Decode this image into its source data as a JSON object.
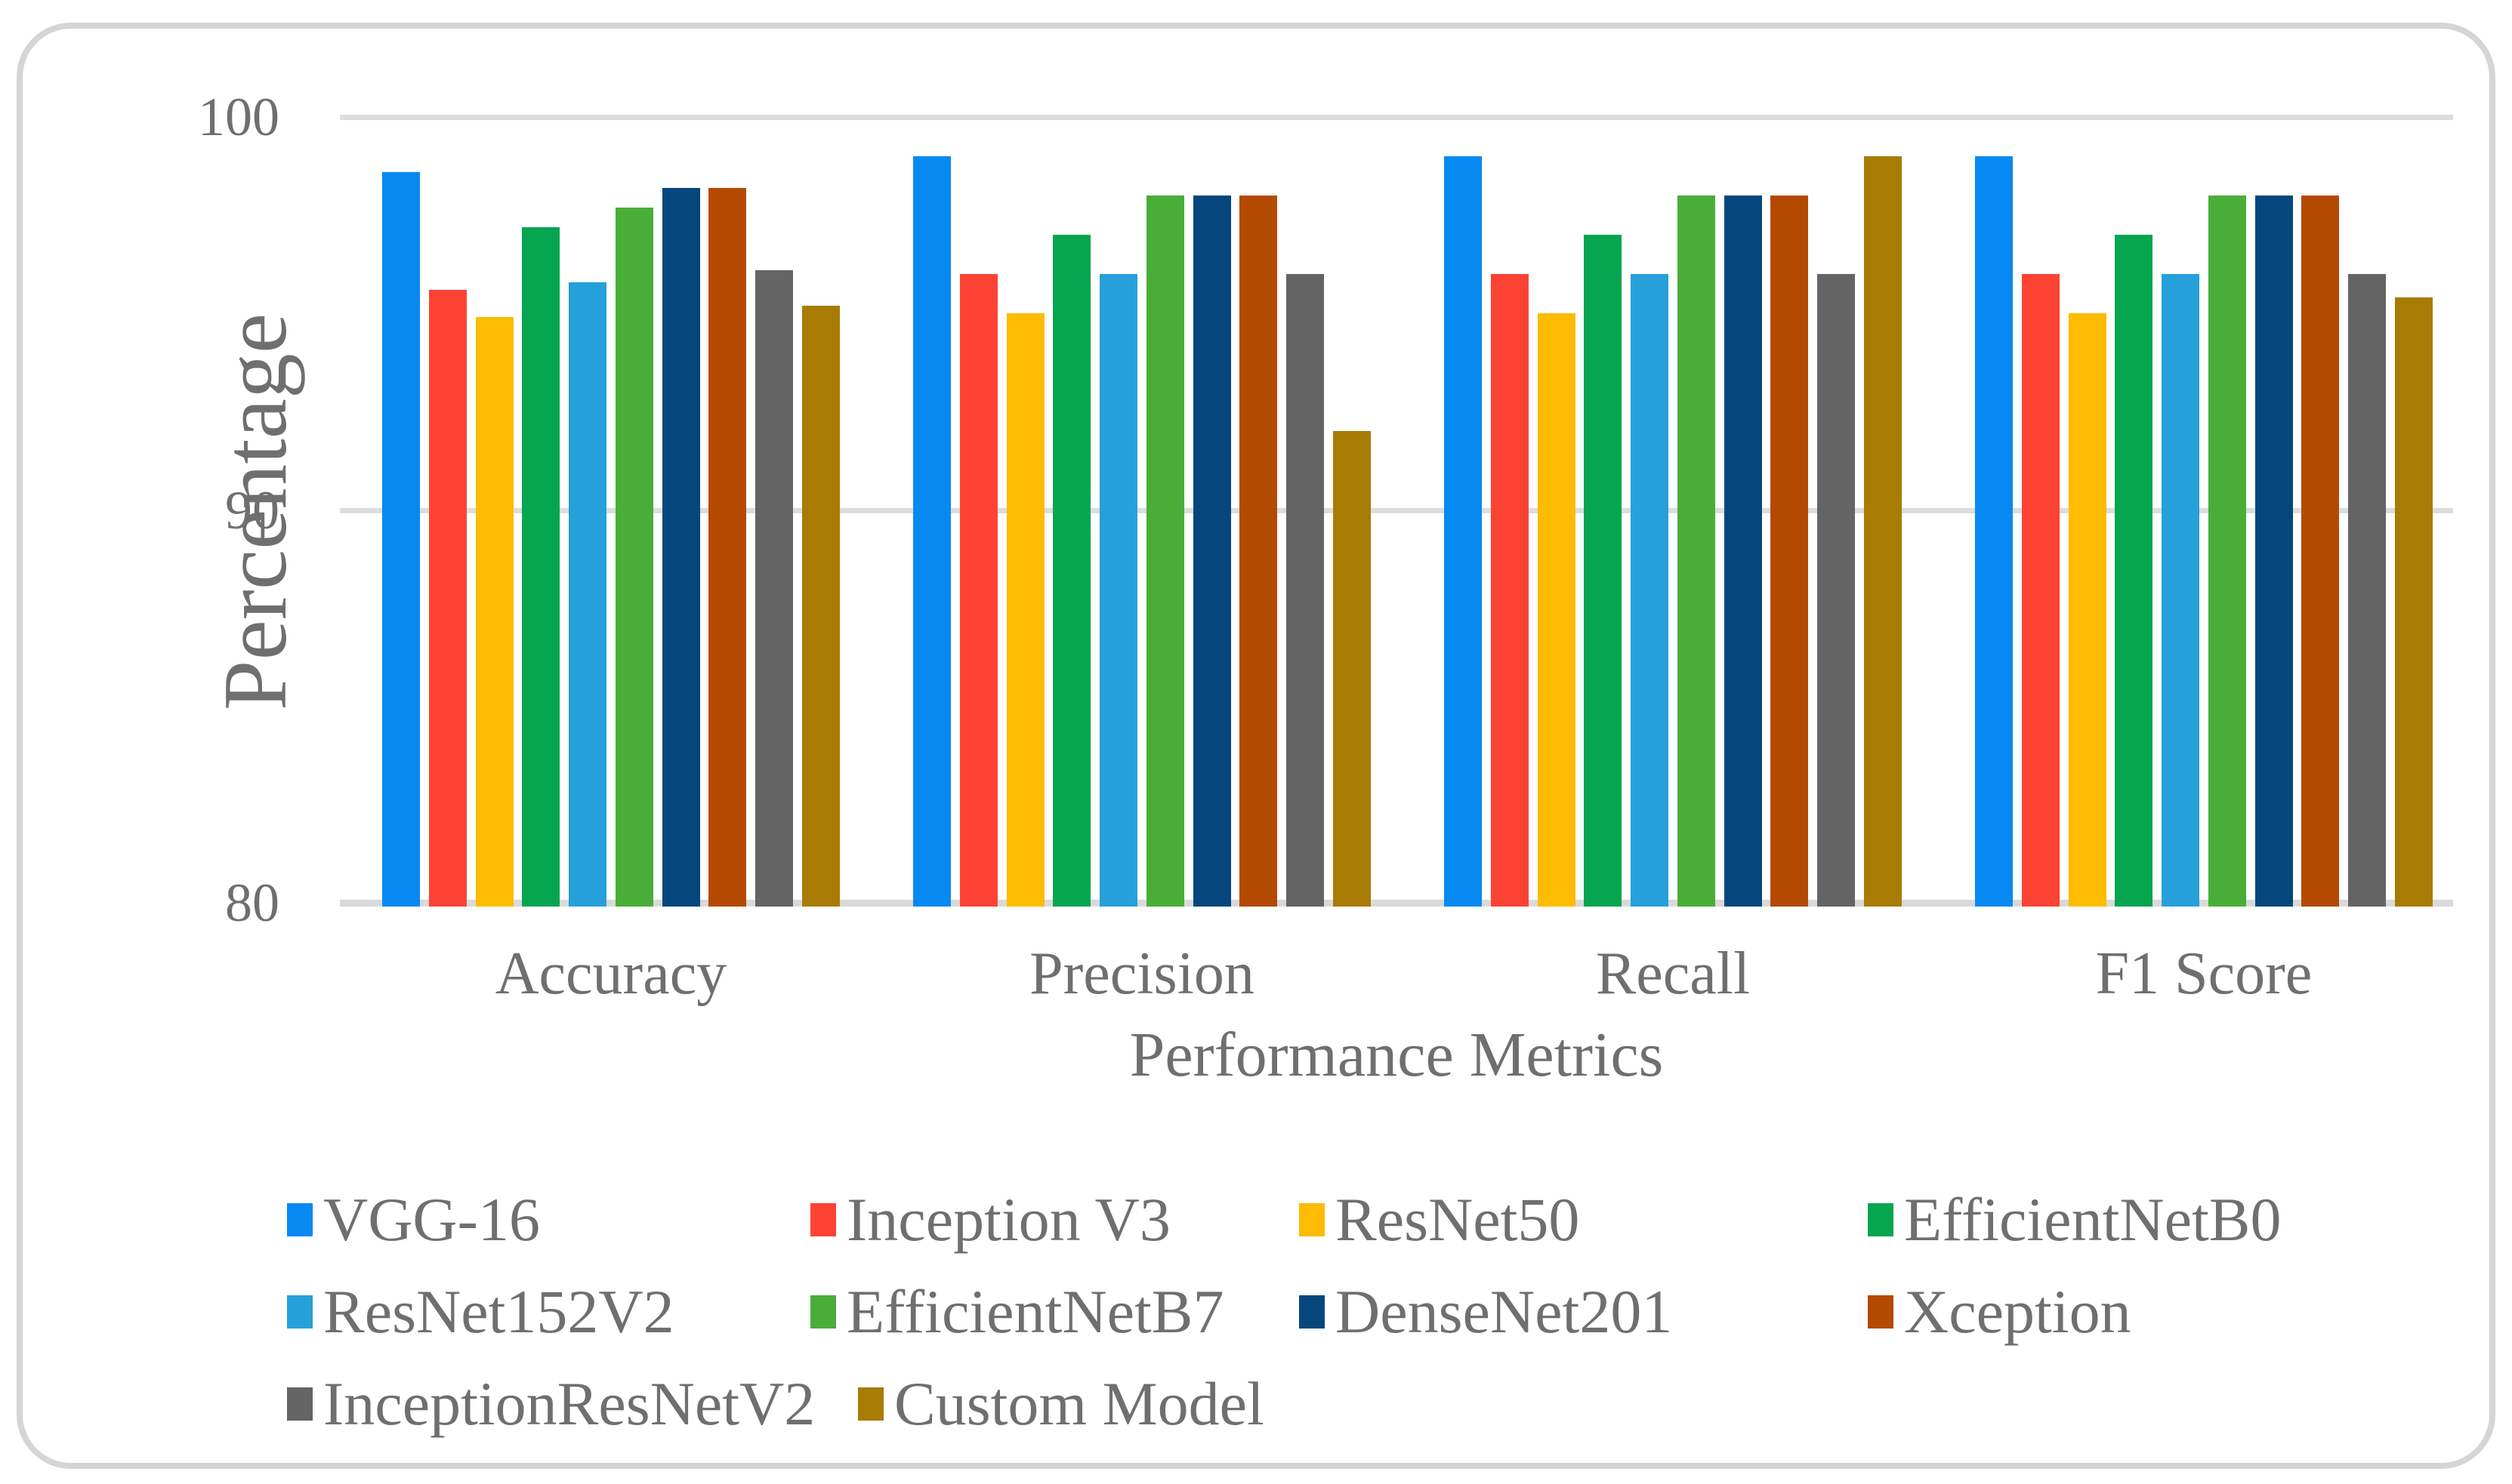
{
  "chart_data": {
    "type": "bar",
    "title": "",
    "xlabel": "Performance Metrics",
    "ylabel": "Percentage",
    "categories": [
      "Accuracy",
      "Precision",
      "Recall",
      "F1 Score"
    ],
    "yticks": [
      100,
      90,
      80
    ],
    "ylim": [
      80,
      100.5
    ],
    "grid": "horizontal-only",
    "legend_position": "bottom",
    "series": [
      {
        "name": "VGG-16",
        "color": "#0789F2",
        "values": [
          98.6,
          99,
          99,
          99
        ]
      },
      {
        "name": "Inception V3",
        "color": "#FC4333",
        "values": [
          95.6,
          96,
          96,
          96
        ]
      },
      {
        "name": "ResNet50",
        "color": "#FDBB01",
        "values": [
          94.9,
          95,
          95,
          95
        ]
      },
      {
        "name": "EfficientNetB0",
        "color": "#06A550",
        "values": [
          97.2,
          97,
          97,
          97
        ]
      },
      {
        "name": "ResNet152V2",
        "color": "#26A0D8",
        "values": [
          95.8,
          96,
          96,
          96
        ]
      },
      {
        "name": "EfficientNetB7",
        "color": "#49AE38",
        "values": [
          97.7,
          98,
          98,
          98
        ]
      },
      {
        "name": "DenseNet201",
        "color": "#05477D",
        "values": [
          98.2,
          98,
          98,
          98
        ]
      },
      {
        "name": "Xception",
        "color": "#B44A02",
        "values": [
          98.2,
          98,
          98,
          98
        ]
      },
      {
        "name": "InceptionResNetV2",
        "color": "#646464",
        "values": [
          96.1,
          96,
          96,
          96
        ]
      },
      {
        "name": "Custom Model",
        "color": "#A87B03",
        "values": [
          95.2,
          92,
          99,
          95.4
        ]
      }
    ]
  },
  "colors": {
    "gridline": "#DCDCDC",
    "baseline": "#D9D9D9",
    "panel_border": "#D5D5D5",
    "text": "#6F6F6F",
    "background": "#FFFFFF"
  }
}
